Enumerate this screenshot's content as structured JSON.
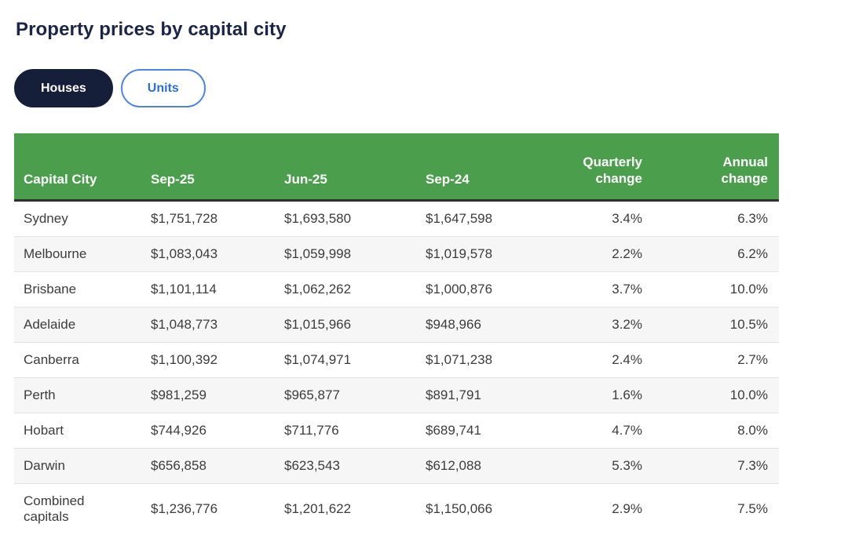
{
  "page": {
    "title": "Property prices by capital city"
  },
  "toggle": {
    "houses_label": "Houses",
    "units_label": "Units",
    "selected": "Houses"
  },
  "table": {
    "headers": [
      "Capital City",
      "Sep-25",
      "Jun-25",
      "Sep-24",
      "Quarterly change",
      "Annual change"
    ],
    "rows": [
      [
        "Sydney",
        "$1,751,728",
        "$1,693,580",
        "$1,647,598",
        "3.4%",
        "6.3%"
      ],
      [
        "Melbourne",
        "$1,083,043",
        "$1,059,998",
        "$1,019,578",
        "2.2%",
        "6.2%"
      ],
      [
        "Brisbane",
        "$1,101,114",
        "$1,062,262",
        "$1,000,876",
        "3.7%",
        "10.0%"
      ],
      [
        "Adelaide",
        "$1,048,773",
        "$1,015,966",
        "$948,966",
        "3.2%",
        "10.5%"
      ],
      [
        "Canberra",
        "$1,100,392",
        "$1,074,971",
        "$1,071,238",
        "2.4%",
        "2.7%"
      ],
      [
        "Perth",
        "$981,259",
        "$965,877",
        "$891,791",
        "1.6%",
        "10.0%"
      ],
      [
        "Hobart",
        "$744,926",
        "$711,776",
        "$689,741",
        "4.7%",
        "8.0%"
      ],
      [
        "Darwin",
        "$656,858",
        "$623,543",
        "$612,088",
        "5.3%",
        "7.3%"
      ],
      [
        "Combined capitals",
        "$1,236,776",
        "$1,201,622",
        "$1,150,066",
        "2.9%",
        "7.5%"
      ]
    ]
  },
  "colors": {
    "header_green": "#4a9e4c",
    "navy": "#161f3a",
    "title_navy": "#1b2546",
    "link_blue": "#2a6ede",
    "blue_border": "#4c86e4",
    "row_alt_gray": "#f6f6f6",
    "row_border": "#e2e2e2",
    "cell_text": "#3c3c3c"
  },
  "chart_data": {
    "type": "table",
    "title": "Property prices by capital city",
    "toggle_options": [
      "Houses",
      "Units"
    ],
    "selected_toggle": "Houses",
    "columns": [
      "Capital City",
      "Sep-25",
      "Jun-25",
      "Sep-24",
      "Quarterly change",
      "Annual change"
    ],
    "rows": [
      {
        "capital_city": "Sydney",
        "sep_25": 1751728,
        "jun_25": 1693580,
        "sep_24": 1647598,
        "quarterly_change_pct": 3.4,
        "annual_change_pct": 6.3
      },
      {
        "capital_city": "Melbourne",
        "sep_25": 1083043,
        "jun_25": 1059998,
        "sep_24": 1019578,
        "quarterly_change_pct": 2.2,
        "annual_change_pct": 6.2
      },
      {
        "capital_city": "Brisbane",
        "sep_25": 1101114,
        "jun_25": 1062262,
        "sep_24": 1000876,
        "quarterly_change_pct": 3.7,
        "annual_change_pct": 10.0
      },
      {
        "capital_city": "Adelaide",
        "sep_25": 1048773,
        "jun_25": 1015966,
        "sep_24": 948966,
        "quarterly_change_pct": 3.2,
        "annual_change_pct": 10.5
      },
      {
        "capital_city": "Canberra",
        "sep_25": 1100392,
        "jun_25": 1074971,
        "sep_24": 1071238,
        "quarterly_change_pct": 2.4,
        "annual_change_pct": 2.7
      },
      {
        "capital_city": "Perth",
        "sep_25": 981259,
        "jun_25": 965877,
        "sep_24": 891791,
        "quarterly_change_pct": 1.6,
        "annual_change_pct": 10.0
      },
      {
        "capital_city": "Hobart",
        "sep_25": 744926,
        "jun_25": 711776,
        "sep_24": 689741,
        "quarterly_change_pct": 4.7,
        "annual_change_pct": 8.0
      },
      {
        "capital_city": "Darwin",
        "sep_25": 656858,
        "jun_25": 623543,
        "sep_24": 612088,
        "quarterly_change_pct": 5.3,
        "annual_change_pct": 7.3
      },
      {
        "capital_city": "Combined capitals",
        "sep_25": 1236776,
        "jun_25": 1201622,
        "sep_24": 1150066,
        "quarterly_change_pct": 2.9,
        "annual_change_pct": 7.5
      }
    ]
  }
}
